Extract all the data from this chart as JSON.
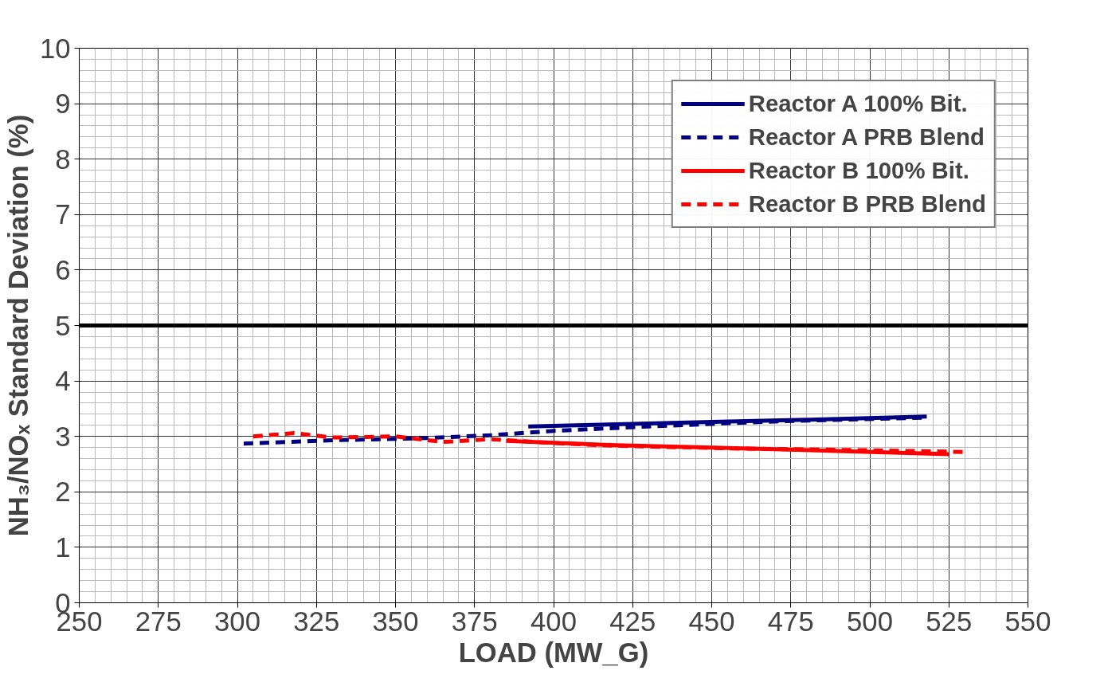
{
  "chart_data": {
    "type": "line",
    "xlabel": "LOAD (MW_G)",
    "ylabel": "NH₃/NOₓ Standard Deviation (%)",
    "xlim": [
      250,
      550
    ],
    "xticks": [
      250,
      275,
      300,
      325,
      350,
      375,
      400,
      425,
      450,
      475,
      500,
      525,
      550
    ],
    "ylim": [
      0,
      10
    ],
    "yticks": [
      0,
      1,
      2,
      3,
      4,
      5,
      6,
      7,
      8,
      9,
      10
    ],
    "grid": true,
    "legend": "top right",
    "series": [
      {
        "name": "Reactor A 100% Bit.",
        "color": "#000080",
        "line_style": "solid",
        "x": [
          392,
          420,
          450,
          480,
          518
        ],
        "values": [
          3.18,
          3.22,
          3.26,
          3.3,
          3.36
        ]
      },
      {
        "name": "Reactor A PRB Blend",
        "color": "#000080",
        "line_style": "dashed",
        "x": [
          302,
          330,
          360,
          380,
          400,
          430,
          470,
          518
        ],
        "values": [
          2.87,
          2.93,
          2.97,
          3.02,
          3.1,
          3.18,
          3.27,
          3.34
        ]
      },
      {
        "name": "Reactor B 100% Bit.",
        "color": "#ff0000",
        "line_style": "solid",
        "x": [
          385,
          420,
          470,
          525
        ],
        "values": [
          2.92,
          2.84,
          2.77,
          2.68
        ]
      },
      {
        "name": "Reactor B PRB Blend",
        "color": "#ff0000",
        "line_style": "dashed",
        "x": [
          305,
          318,
          330,
          350,
          365,
          380,
          400,
          420,
          460,
          500,
          530
        ],
        "values": [
          3.0,
          3.06,
          2.98,
          3.0,
          2.9,
          2.95,
          2.88,
          2.83,
          2.78,
          2.75,
          2.72
        ]
      }
    ],
    "ref_lines": [
      {
        "axis": "y",
        "value": 5,
        "color": "#000000",
        "line_style": "solid"
      }
    ]
  }
}
